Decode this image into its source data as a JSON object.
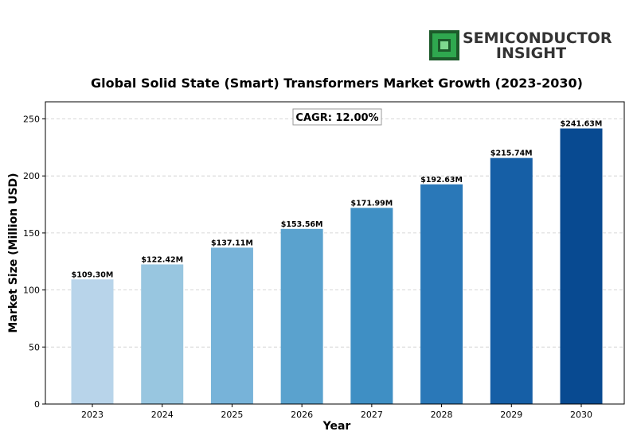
{
  "logo": {
    "line1": "SEMICONDUCTOR",
    "line2": "INSIGHT",
    "icon": "chip-icon",
    "colors": {
      "icon_green": "#2fa84f",
      "icon_dark": "#1c5a2a",
      "text": "#333333"
    }
  },
  "chart_data": {
    "type": "bar",
    "title": "Global Solid State (Smart) Transformers Market Growth (2023-2030)",
    "xlabel": "Year",
    "ylabel": "Market Size (Million USD)",
    "categories": [
      "2023",
      "2024",
      "2025",
      "2026",
      "2027",
      "2028",
      "2029",
      "2030"
    ],
    "values": [
      109.3,
      122.42,
      137.11,
      153.56,
      171.99,
      192.63,
      215.74,
      241.63
    ],
    "data_labels": [
      "$109.30M",
      "$122.42M",
      "$137.11M",
      "$153.56M",
      "$171.99M",
      "$192.63M",
      "$215.74M",
      "$241.63M"
    ],
    "ylim": [
      0,
      265
    ],
    "yticks": [
      0,
      50,
      100,
      150,
      200,
      250
    ],
    "grid": "horizontal-dashed",
    "annotation": "CAGR: 12.00%",
    "bar_colors": [
      "#b8d4ea",
      "#98c6e0",
      "#77b3d9",
      "#5aa2ce",
      "#3f8fc4",
      "#2a78b8",
      "#165fa6",
      "#084a91"
    ]
  }
}
